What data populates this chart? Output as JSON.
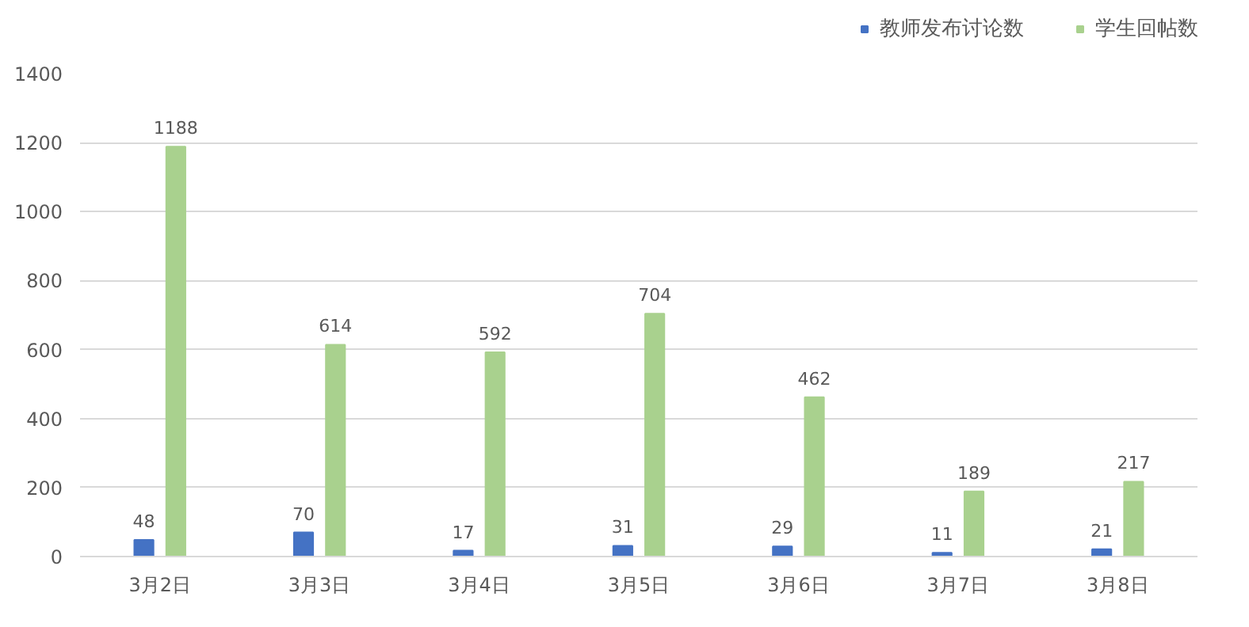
{
  "chart_data": {
    "type": "bar",
    "categories": [
      "3月2日",
      "3月3日",
      "3月4日",
      "3月5日",
      "3月6日",
      "3月7日",
      "3月8日"
    ],
    "series": [
      {
        "name": "教师发布讨论数",
        "color": "#4472c4",
        "values": [
          48,
          70,
          17,
          31,
          29,
          11,
          21
        ]
      },
      {
        "name": "学生回帖数",
        "color": "#a9d18e",
        "values": [
          1188,
          614,
          592,
          704,
          462,
          189,
          217
        ]
      }
    ],
    "ylim": [
      0,
      1400
    ],
    "yticks": [
      0,
      200,
      400,
      600,
      800,
      1000,
      1200,
      1400
    ],
    "grid": "y",
    "legend": "top right",
    "data_labels": true
  }
}
